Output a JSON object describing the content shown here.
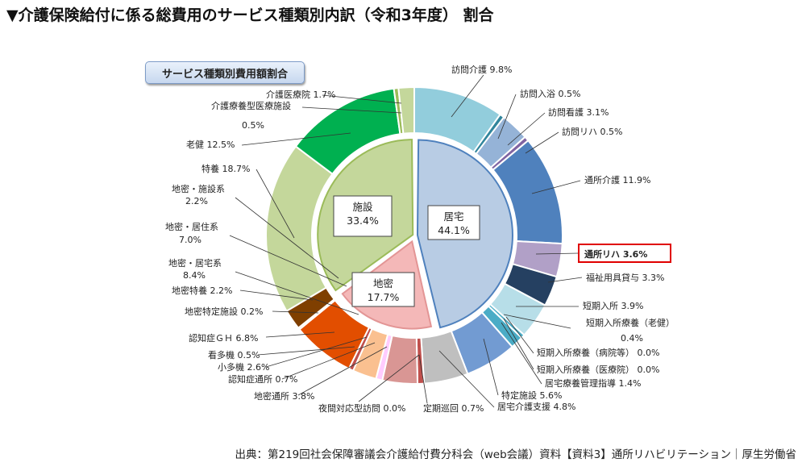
{
  "title": "▼介護保険給付に係る総費用のサービス種類別内訳（令和3年度） 割合",
  "source": "出典：第219回社会保障審議会介護給付費分科会（web会議）資料【資料3】通所リハビリテーション｜厚生労働省",
  "chart_data": {
    "type": "pie",
    "subtype": "nested-donut",
    "title": "サービス種類別費用額割合",
    "unit": "%",
    "inner": [
      {
        "name": "居宅",
        "value": 44.1,
        "color": "#b8cce4"
      },
      {
        "name": "地密",
        "value": 17.7,
        "color": "#f4b8b8"
      },
      {
        "name": "施設",
        "value": 33.4,
        "color": "#c4d79b"
      }
    ],
    "outer": [
      {
        "name": "訪問介護",
        "value": 9.8,
        "color": "#92cddc"
      },
      {
        "name": "訪問入浴",
        "value": 0.5,
        "color": "#31859c"
      },
      {
        "name": "訪問看護",
        "value": 3.1,
        "color": "#95b3d7"
      },
      {
        "name": "訪問リハ",
        "value": 0.5,
        "color": "#8064a2"
      },
      {
        "name": "通所介護",
        "value": 11.9,
        "color": "#4f81bd"
      },
      {
        "name": "通所リハ",
        "value": 3.6,
        "color": "#b1a0c7",
        "highlight": true
      },
      {
        "name": "福祉用具貸与",
        "value": 3.3,
        "color": "#254061"
      },
      {
        "name": "短期入所",
        "value": 3.9,
        "color": "#b7dee8"
      },
      {
        "name": "短期入所療養（老健）",
        "value": 0.4,
        "color": "#4bacc6"
      },
      {
        "name": "短期入所療養（病院等）",
        "value": 0.0,
        "color": "#31859c"
      },
      {
        "name": "短期入所療養（医療院）",
        "value": 0.0,
        "color": "#31859c"
      },
      {
        "name": "居宅療養管理指導",
        "value": 1.4,
        "color": "#4bacc6"
      },
      {
        "name": "特定施設",
        "value": 5.6,
        "color": "#729bd2"
      },
      {
        "name": "居宅介護支援",
        "value": 4.8,
        "color": "#bfbfbf"
      },
      {
        "name": "定期巡回",
        "value": 0.7,
        "color": "#c0504d"
      },
      {
        "name": "夜間対応型訪問",
        "value": 0.0,
        "color": "#c0504d"
      },
      {
        "name": "地密通所",
        "value": 3.8,
        "color": "#d99694"
      },
      {
        "name": "認知症通所",
        "value": 0.7,
        "color": "#ffccff"
      },
      {
        "name": "小多機",
        "value": 2.6,
        "color": "#fac090"
      },
      {
        "name": "看多機",
        "value": 0.5,
        "color": "#c0504d"
      },
      {
        "name": "認知症ＧＨ",
        "value": 6.8,
        "color": "#e24e00"
      },
      {
        "name": "地密特定施設",
        "value": 0.2,
        "color": "#fcd5b4"
      },
      {
        "name": "地密特養",
        "value": 2.2,
        "color": "#7f3f00"
      },
      {
        "name": "特養",
        "value": 18.7,
        "color": "#c4d79b"
      },
      {
        "name": "老健",
        "value": 12.5,
        "color": "#00b050"
      },
      {
        "name": "介護療養型医療施設",
        "value": 0.5,
        "color": "#9bbb59"
      },
      {
        "name": "介護医療院",
        "value": 1.7,
        "color": "#c4d79b"
      }
    ],
    "inner_breakdown_labels": [
      {
        "name": "地密・施設系",
        "value": 2.2
      },
      {
        "name": "地密・居住系",
        "value": 7.0
      },
      {
        "name": "地密・居宅系",
        "value": 8.4
      }
    ],
    "highlight_color": "#e00000"
  }
}
